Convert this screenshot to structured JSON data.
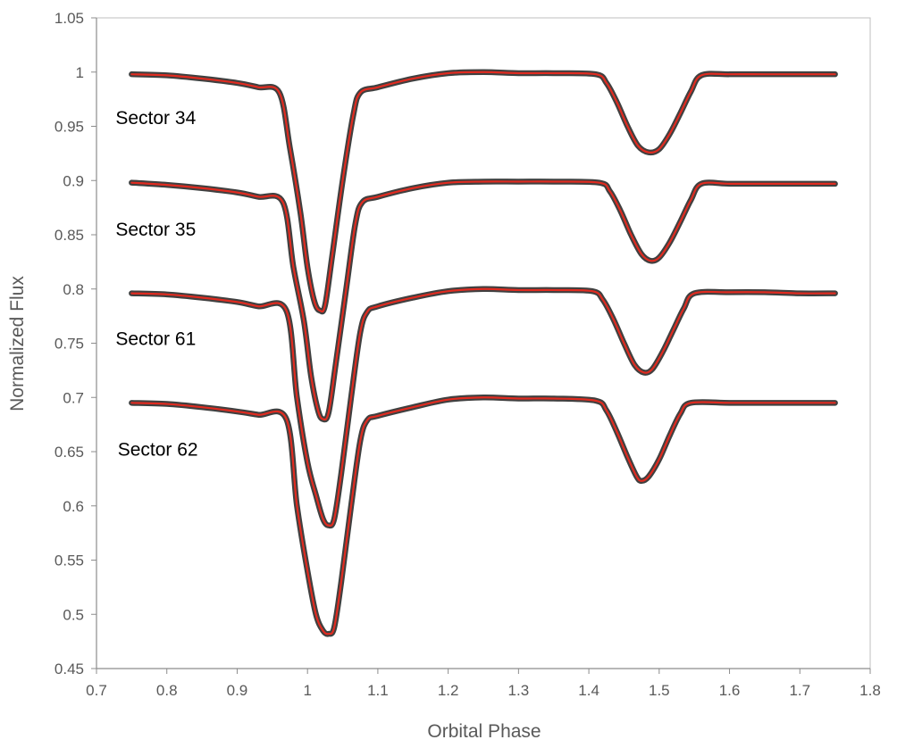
{
  "chart_data": {
    "type": "line",
    "title": "",
    "xlabel": "Orbital Phase",
    "ylabel": "Normalized Flux",
    "xlim": [
      0.7,
      1.8
    ],
    "ylim": [
      0.45,
      1.05
    ],
    "x_ticks": [
      0.7,
      0.8,
      0.9,
      1,
      1.1,
      1.2,
      1.3,
      1.4,
      1.5,
      1.6,
      1.7,
      1.8
    ],
    "x_tick_labels": [
      "0.7",
      "0.8",
      "0.9",
      "1",
      "1.1",
      "1.2",
      "1.3",
      "1.4",
      "1.5",
      "1.6",
      "1.7",
      "1.8"
    ],
    "y_ticks": [
      0.45,
      0.5,
      0.55,
      0.6,
      0.65,
      0.7,
      0.75,
      0.8,
      0.85,
      0.9,
      0.95,
      1,
      1.05
    ],
    "y_tick_labels": [
      "0.45",
      "0.5",
      "0.55",
      "0.6",
      "0.65",
      "0.7",
      "0.75",
      "0.8",
      "0.85",
      "0.9",
      "0.95",
      "1",
      "1.05"
    ],
    "grid": false,
    "colors": {
      "data": "#404040",
      "model": "#e02b20"
    },
    "series": [
      {
        "label": "Sector 34",
        "label_at": [
          0.75,
          0.958
        ],
        "x": [
          0.75,
          0.8,
          0.85,
          0.9,
          0.93,
          0.96,
          0.975,
          0.99,
          1.0,
          1.01,
          1.018,
          1.025,
          1.035,
          1.05,
          1.065,
          1.075,
          1.1,
          1.15,
          1.2,
          1.25,
          1.3,
          1.35,
          1.41,
          1.425,
          1.44,
          1.455,
          1.47,
          1.485,
          1.5,
          1.515,
          1.53,
          1.545,
          1.56,
          1.6,
          1.65,
          1.7,
          1.75
        ],
        "y": [
          0.998,
          0.997,
          0.994,
          0.99,
          0.986,
          0.981,
          0.93,
          0.87,
          0.82,
          0.788,
          0.78,
          0.785,
          0.83,
          0.9,
          0.96,
          0.981,
          0.986,
          0.994,
          0.999,
          1.0,
          0.999,
          0.999,
          0.998,
          0.99,
          0.972,
          0.95,
          0.932,
          0.926,
          0.929,
          0.943,
          0.962,
          0.982,
          0.997,
          0.998,
          0.998,
          0.998,
          0.998
        ]
      },
      {
        "label": "Sector 35",
        "label_at": [
          0.75,
          0.855
        ],
        "x": [
          0.75,
          0.8,
          0.85,
          0.9,
          0.93,
          0.965,
          0.98,
          0.995,
          1.005,
          1.015,
          1.022,
          1.03,
          1.04,
          1.055,
          1.068,
          1.078,
          1.1,
          1.15,
          1.2,
          1.25,
          1.3,
          1.35,
          1.415,
          1.43,
          1.445,
          1.46,
          1.475,
          1.488,
          1.5,
          1.515,
          1.53,
          1.545,
          1.56,
          1.6,
          1.65,
          1.7,
          1.75
        ],
        "y": [
          0.898,
          0.896,
          0.893,
          0.889,
          0.885,
          0.88,
          0.82,
          0.77,
          0.72,
          0.688,
          0.68,
          0.686,
          0.73,
          0.8,
          0.86,
          0.88,
          0.885,
          0.893,
          0.898,
          0.899,
          0.899,
          0.899,
          0.898,
          0.89,
          0.872,
          0.85,
          0.832,
          0.826,
          0.829,
          0.843,
          0.862,
          0.882,
          0.897,
          0.897,
          0.897,
          0.897,
          0.897
        ]
      },
      {
        "label": "Sector 61",
        "label_at": [
          0.75,
          0.754
        ],
        "x": [
          0.75,
          0.8,
          0.85,
          0.9,
          0.93,
          0.97,
          0.985,
          1.0,
          1.012,
          1.022,
          1.03,
          1.038,
          1.048,
          1.062,
          1.075,
          1.085,
          1.1,
          1.15,
          1.2,
          1.25,
          1.3,
          1.35,
          1.405,
          1.42,
          1.435,
          1.45,
          1.465,
          1.478,
          1.49,
          1.505,
          1.52,
          1.535,
          1.55,
          1.6,
          1.65,
          1.7,
          1.75
        ],
        "y": [
          0.796,
          0.795,
          0.792,
          0.788,
          0.784,
          0.78,
          0.7,
          0.64,
          0.61,
          0.588,
          0.582,
          0.588,
          0.63,
          0.7,
          0.76,
          0.779,
          0.784,
          0.792,
          0.798,
          0.8,
          0.799,
          0.799,
          0.798,
          0.79,
          0.772,
          0.75,
          0.73,
          0.723,
          0.726,
          0.742,
          0.762,
          0.782,
          0.796,
          0.797,
          0.797,
          0.796,
          0.796
        ]
      },
      {
        "label": "Sector 62",
        "label_at": [
          0.753,
          0.652
        ],
        "x": [
          0.75,
          0.8,
          0.85,
          0.9,
          0.93,
          0.97,
          0.985,
          1.0,
          1.012,
          1.022,
          1.03,
          1.038,
          1.048,
          1.062,
          1.075,
          1.085,
          1.1,
          1.15,
          1.2,
          1.25,
          1.3,
          1.35,
          1.41,
          1.425,
          1.44,
          1.455,
          1.468,
          1.475,
          1.485,
          1.5,
          1.515,
          1.53,
          1.545,
          1.6,
          1.65,
          1.7,
          1.75
        ],
        "y": [
          0.695,
          0.694,
          0.691,
          0.687,
          0.684,
          0.68,
          0.6,
          0.54,
          0.5,
          0.485,
          0.482,
          0.488,
          0.53,
          0.6,
          0.66,
          0.679,
          0.683,
          0.691,
          0.698,
          0.7,
          0.699,
          0.699,
          0.697,
          0.688,
          0.668,
          0.645,
          0.627,
          0.623,
          0.627,
          0.643,
          0.665,
          0.685,
          0.695,
          0.695,
          0.695,
          0.695,
          0.695
        ]
      }
    ]
  }
}
